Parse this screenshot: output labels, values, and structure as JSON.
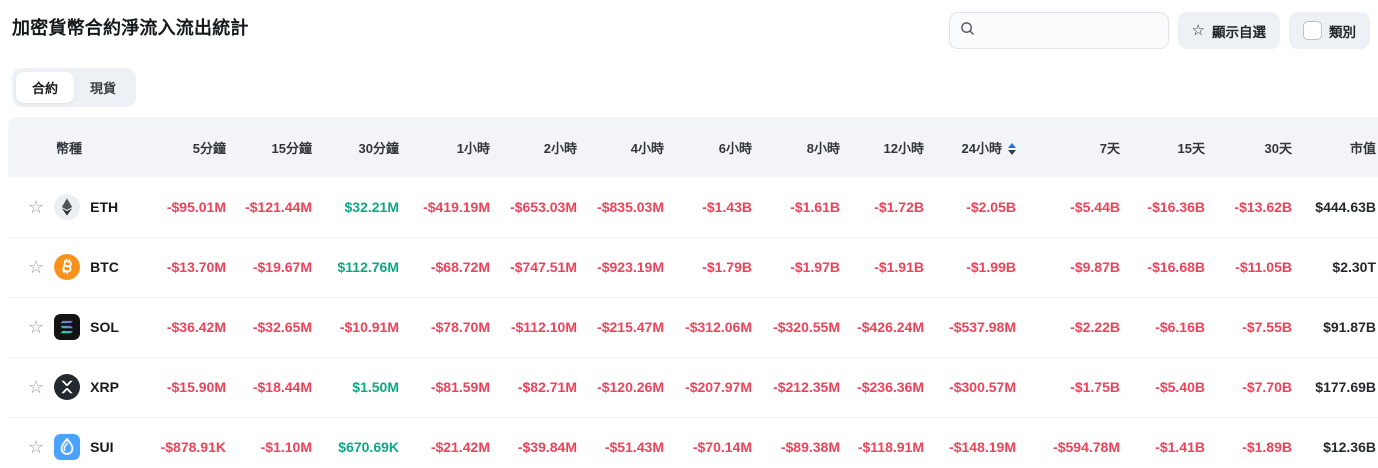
{
  "page": {
    "title": "加密貨幣合約淨流入流出統計"
  },
  "toolbar": {
    "search": {
      "placeholder": "",
      "value": "",
      "icon": "search-icon"
    },
    "favorites_button": {
      "label": "顯示自選",
      "icon": "star-icon"
    },
    "category_button": {
      "label": "類別",
      "icon": "checkbox-unchecked",
      "checked": false
    }
  },
  "tabs": [
    {
      "label": "合約",
      "active": true
    },
    {
      "label": "現貨",
      "active": false
    }
  ],
  "colors": {
    "negative": "#eb445a",
    "positive": "#0fa884",
    "btc": "#f7931a",
    "sui": "#4ca3ff",
    "sort_active": "#2e6de4"
  },
  "table": {
    "columns": [
      "幣種",
      "5分鐘",
      "15分鐘",
      "30分鐘",
      "1小時",
      "2小時",
      "4小時",
      "6小時",
      "8小時",
      "12小時",
      "24小時",
      "7天",
      "15天",
      "30天",
      "市值"
    ],
    "sorted_column": "24小時",
    "sort_direction_highlight": "up",
    "rows": [
      {
        "symbol": "ETH",
        "icon": "eth-icon",
        "favorited": false,
        "values": [
          "-$95.01M",
          "-$121.44M",
          "$32.21M",
          "-$419.19M",
          "-$653.03M",
          "-$835.03M",
          "-$1.43B",
          "-$1.61B",
          "-$1.72B",
          "-$2.05B",
          "-$5.44B",
          "-$16.36B",
          "-$13.62B"
        ],
        "market_cap": "$444.63B"
      },
      {
        "symbol": "BTC",
        "icon": "btc-icon",
        "favorited": false,
        "values": [
          "-$13.70M",
          "-$19.67M",
          "$112.76M",
          "-$68.72M",
          "-$747.51M",
          "-$923.19M",
          "-$1.79B",
          "-$1.97B",
          "-$1.91B",
          "-$1.99B",
          "-$9.87B",
          "-$16.68B",
          "-$11.05B"
        ],
        "market_cap": "$2.30T"
      },
      {
        "symbol": "SOL",
        "icon": "sol-icon",
        "favorited": false,
        "values": [
          "-$36.42M",
          "-$32.65M",
          "-$10.91M",
          "-$78.70M",
          "-$112.10M",
          "-$215.47M",
          "-$312.06M",
          "-$320.55M",
          "-$426.24M",
          "-$537.98M",
          "-$2.22B",
          "-$6.16B",
          "-$7.55B"
        ],
        "market_cap": "$91.87B"
      },
      {
        "symbol": "XRP",
        "icon": "xrp-icon",
        "favorited": false,
        "values": [
          "-$15.90M",
          "-$18.44M",
          "$1.50M",
          "-$81.59M",
          "-$82.71M",
          "-$120.26M",
          "-$207.97M",
          "-$212.35M",
          "-$236.36M",
          "-$300.57M",
          "-$1.75B",
          "-$5.40B",
          "-$7.70B"
        ],
        "market_cap": "$177.69B"
      },
      {
        "symbol": "SUI",
        "icon": "sui-icon",
        "favorited": false,
        "values": [
          "-$878.91K",
          "-$1.10M",
          "$670.69K",
          "-$21.42M",
          "-$39.84M",
          "-$51.43M",
          "-$70.14M",
          "-$89.38M",
          "-$118.91M",
          "-$148.19M",
          "-$594.78M",
          "-$1.41B",
          "-$1.89B"
        ],
        "market_cap": "$12.36B"
      }
    ]
  }
}
